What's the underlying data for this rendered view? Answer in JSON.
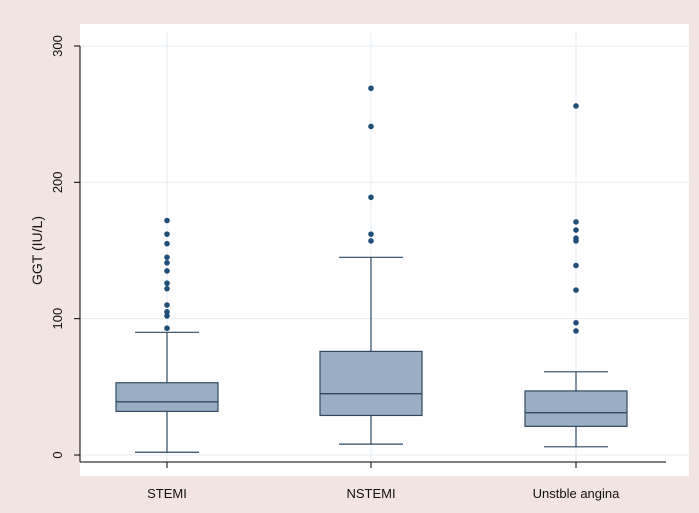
{
  "chart_data": {
    "type": "box",
    "title": "",
    "xlabel": "",
    "ylabel": "GGT (IU/L)",
    "ylim": [
      0,
      300
    ],
    "yticks": [
      0,
      100,
      200,
      300
    ],
    "grid": true,
    "categories": [
      "STEMI",
      "NSTEMI",
      "Unstble angina"
    ],
    "boxes": [
      {
        "category": "STEMI",
        "whisker_low": 2,
        "q1": 32,
        "median": 39,
        "q3": 53,
        "whisker_high": 90,
        "outliers": [
          93,
          102,
          105,
          110,
          122,
          126,
          135,
          141,
          145,
          155,
          162,
          172
        ]
      },
      {
        "category": "NSTEMI",
        "whisker_low": 8,
        "q1": 29,
        "median": 45,
        "q3": 76,
        "whisker_high": 145,
        "outliers": [
          157,
          162,
          189,
          241,
          269
        ]
      },
      {
        "category": "Unstble angina",
        "whisker_low": 6,
        "q1": 21,
        "median": 31,
        "q3": 47,
        "whisker_high": 61,
        "outliers": [
          91,
          97,
          121,
          139,
          157,
          159,
          165,
          171,
          256
        ]
      }
    ],
    "colors": {
      "outer_background": "#f2e4e1",
      "plot_background": "#ffffff",
      "box_fill": "#9aaec3",
      "box_stroke": "#2e4a62",
      "outlier": "#1f4e79",
      "grid": "#e6ecf0",
      "axis": "#000000"
    }
  }
}
